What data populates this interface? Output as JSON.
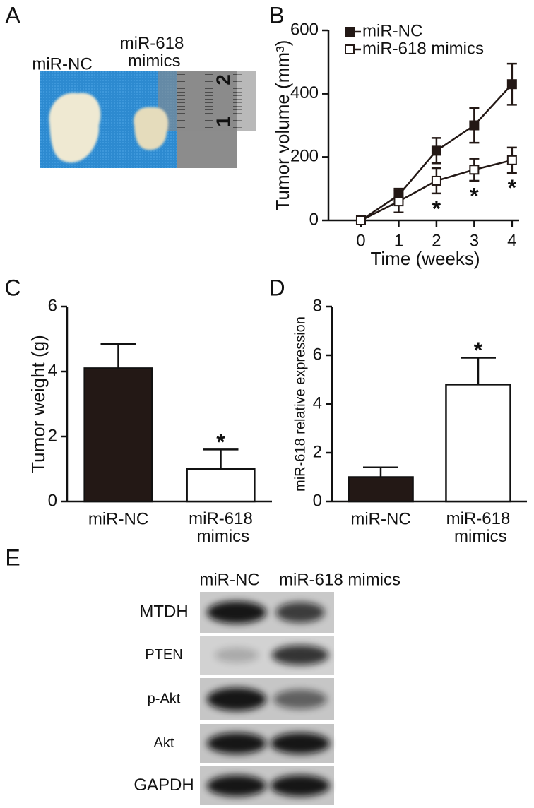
{
  "panel_labels": [
    "A",
    "B",
    "C",
    "D",
    "E"
  ],
  "photo": {
    "labels": [
      "miR-NC",
      "miR-618 mimics"
    ],
    "ruler_labels": [
      "1",
      "2"
    ]
  },
  "chart_data": [
    {
      "type": "line",
      "xlabel": "Time (weeks)",
      "ylabel": "Tumor volume (mm³)",
      "x": [
        0,
        1,
        2,
        3,
        4
      ],
      "xlim": [
        -0.86,
        4.19
      ],
      "xticks": [
        0,
        1,
        2,
        3,
        4
      ],
      "ylim": [
        0,
        600
      ],
      "yticks": [
        0,
        200,
        400,
        600
      ],
      "legend": "top-left",
      "series": [
        {
          "name": "miR-NC",
          "color": "#231815",
          "marker": "filled-square",
          "values": [
            0,
            80,
            220,
            300,
            430
          ],
          "errors": [
            0,
            20,
            40,
            55,
            65
          ]
        },
        {
          "name": "miR-618 mimics",
          "color": "#231815",
          "marker": "open-square",
          "values": [
            0,
            60,
            125,
            160,
            190
          ],
          "errors": [
            0,
            35,
            40,
            35,
            40
          ],
          "significance": [
            null,
            null,
            "*",
            "*",
            "*"
          ]
        }
      ]
    },
    {
      "type": "bar",
      "ylabel": "Tumor weight (g)",
      "categories": [
        "miR-NC",
        "miR-618 mimics"
      ],
      "values": [
        4.1,
        1.0
      ],
      "errors": [
        0.75,
        0.6
      ],
      "colors": [
        "#231815",
        "#ffffff"
      ],
      "significance": [
        null,
        "*"
      ],
      "ylim": [
        0,
        6
      ],
      "yticks": [
        0,
        2,
        4,
        6
      ]
    },
    {
      "type": "bar",
      "ylabel": "miR-618 relative expression",
      "categories": [
        "miR-NC",
        "miR-618 mimics"
      ],
      "values": [
        1.0,
        4.8
      ],
      "errors": [
        0.4,
        1.1
      ],
      "colors": [
        "#231815",
        "#ffffff"
      ],
      "significance": [
        null,
        "*"
      ],
      "ylim": [
        0,
        8
      ],
      "yticks": [
        0,
        2,
        4,
        6,
        8
      ]
    }
  ],
  "blot": {
    "columns": [
      "miR-NC",
      "miR-618 mimics"
    ],
    "rows": [
      "MTDH",
      "PTEN",
      "p-Akt",
      "Akt",
      "GAPDH"
    ]
  }
}
